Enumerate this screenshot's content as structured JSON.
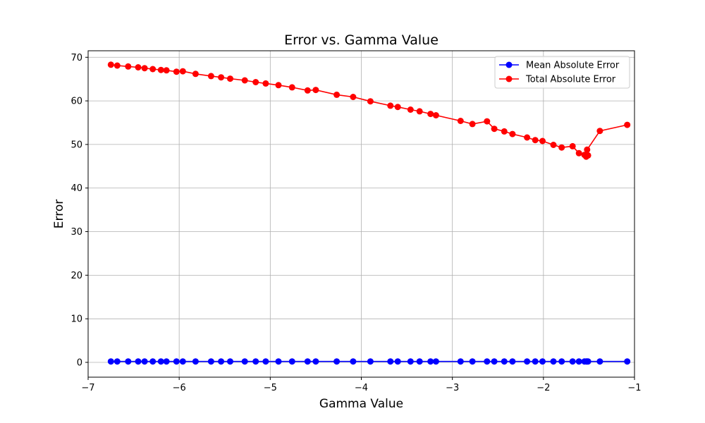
{
  "chart_data": {
    "type": "line",
    "title": "Error vs. Gamma Value",
    "xlabel": "Gamma Value",
    "ylabel": "Error",
    "xlim": [
      -7.0,
      -1.0
    ],
    "ylim": [
      -3.4,
      71.5
    ],
    "xticks": [
      -7,
      -6,
      -5,
      -4,
      -3,
      -2,
      -1
    ],
    "yticks": [
      0,
      10,
      20,
      30,
      40,
      50,
      60,
      70
    ],
    "xtick_labels": [
      "−7",
      "−6",
      "−5",
      "−4",
      "−3",
      "−2",
      "−1"
    ],
    "ytick_labels": [
      "0",
      "10",
      "20",
      "30",
      "40",
      "50",
      "60",
      "70"
    ],
    "grid": true,
    "legend_position": "top-right",
    "x": [
      -6.75,
      -6.68,
      -6.56,
      -6.45,
      -6.38,
      -6.29,
      -6.2,
      -6.14,
      -6.03,
      -5.96,
      -5.82,
      -5.65,
      -5.54,
      -5.44,
      -5.28,
      -5.16,
      -5.05,
      -4.91,
      -4.76,
      -4.59,
      -4.5,
      -4.27,
      -4.09,
      -3.9,
      -3.68,
      -3.6,
      -3.46,
      -3.36,
      -3.24,
      -3.18,
      -2.91,
      -2.78,
      -2.62,
      -2.54,
      -2.43,
      -2.34,
      -2.18,
      -2.09,
      -2.01,
      -1.89,
      -1.8,
      -1.68,
      -1.61,
      -1.55,
      -1.53,
      -1.51,
      -1.52,
      -1.38,
      -1.08
    ],
    "series": [
      {
        "name": "Mean Absolute Error",
        "color": "#0000ff",
        "values": [
          0.2,
          0.2,
          0.2,
          0.2,
          0.2,
          0.2,
          0.2,
          0.2,
          0.2,
          0.2,
          0.2,
          0.2,
          0.2,
          0.2,
          0.2,
          0.2,
          0.2,
          0.2,
          0.2,
          0.2,
          0.2,
          0.2,
          0.2,
          0.2,
          0.2,
          0.2,
          0.2,
          0.2,
          0.2,
          0.2,
          0.2,
          0.2,
          0.2,
          0.2,
          0.2,
          0.2,
          0.2,
          0.2,
          0.2,
          0.2,
          0.2,
          0.2,
          0.2,
          0.2,
          0.2,
          0.2,
          0.2,
          0.2,
          0.2
        ]
      },
      {
        "name": "Total Absolute Error",
        "color": "#ff0000",
        "values": [
          68.3,
          68.1,
          67.9,
          67.7,
          67.5,
          67.3,
          67.1,
          67.0,
          66.7,
          66.8,
          66.2,
          65.7,
          65.4,
          65.1,
          64.7,
          64.3,
          64.0,
          63.6,
          63.1,
          62.4,
          62.5,
          61.4,
          60.9,
          59.9,
          58.9,
          58.6,
          58.0,
          57.6,
          57.0,
          56.7,
          55.4,
          54.7,
          55.3,
          53.6,
          53.0,
          52.4,
          51.6,
          51.0,
          50.8,
          49.9,
          49.3,
          49.6,
          48.0,
          47.6,
          47.2,
          47.5,
          48.8,
          53.1,
          54.5
        ]
      }
    ]
  }
}
